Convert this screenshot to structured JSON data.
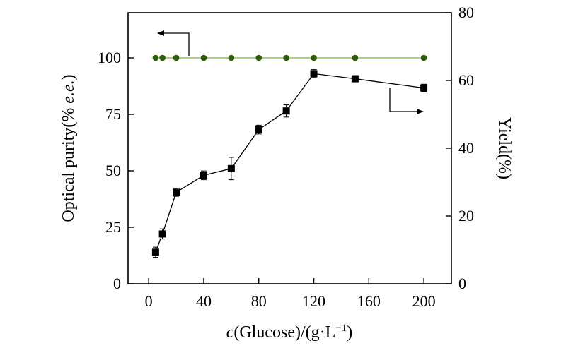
{
  "chart_data": {
    "type": "line",
    "x": [
      5,
      10,
      20,
      40,
      60,
      80,
      100,
      120,
      150,
      200
    ],
    "xlim": [
      -15,
      220
    ],
    "xticks": [
      0,
      40,
      80,
      120,
      160,
      200
    ],
    "xtick_labels": [
      "0",
      "40",
      "80",
      "120",
      "160",
      "200"
    ],
    "xlabel": {
      "italic": "c",
      "text": "(Glucose)/(g·L",
      "superscript": "−1",
      "close": ")"
    },
    "left_axis": {
      "ylim": [
        0,
        120
      ],
      "ticks": [
        0,
        25,
        50,
        75,
        100
      ],
      "tick_labels": [
        "0",
        "25",
        "50",
        "75",
        "100"
      ],
      "label_text": "Optical purity(% ",
      "label_italic": "e.e.",
      "label_close": ")"
    },
    "right_axis": {
      "ylim": [
        0,
        80
      ],
      "ticks": [
        0,
        20,
        40,
        60,
        80
      ],
      "tick_labels": [
        "0",
        "20",
        "40",
        "60",
        "80"
      ],
      "label": "Yield(%)"
    },
    "series": [
      {
        "name": "Optical purity",
        "axis": "left",
        "marker": "circle",
        "color": "#2d5e0a",
        "line_color": "#7fb43a",
        "values": [
          100,
          100,
          100,
          100,
          100,
          100,
          100,
          100,
          100,
          100
        ]
      },
      {
        "name": "Yield",
        "axis": "right",
        "marker": "square",
        "color": "#000000",
        "line_color": "#000000",
        "values": [
          9.3,
          14.7,
          27.0,
          32.0,
          34.0,
          45.5,
          51.0,
          62.0,
          60.5,
          57.8
        ],
        "errors": [
          1.5,
          1.5,
          1.2,
          1.3,
          3.3,
          1.3,
          1.8,
          1.2,
          0.9,
          1.1
        ]
      }
    ],
    "annotations": [
      {
        "type": "arrow",
        "direction": "left",
        "points_to": "left_axis",
        "series": "Optical purity"
      },
      {
        "type": "arrow",
        "direction": "right",
        "points_to": "right_axis",
        "series": "Yield"
      }
    ]
  }
}
